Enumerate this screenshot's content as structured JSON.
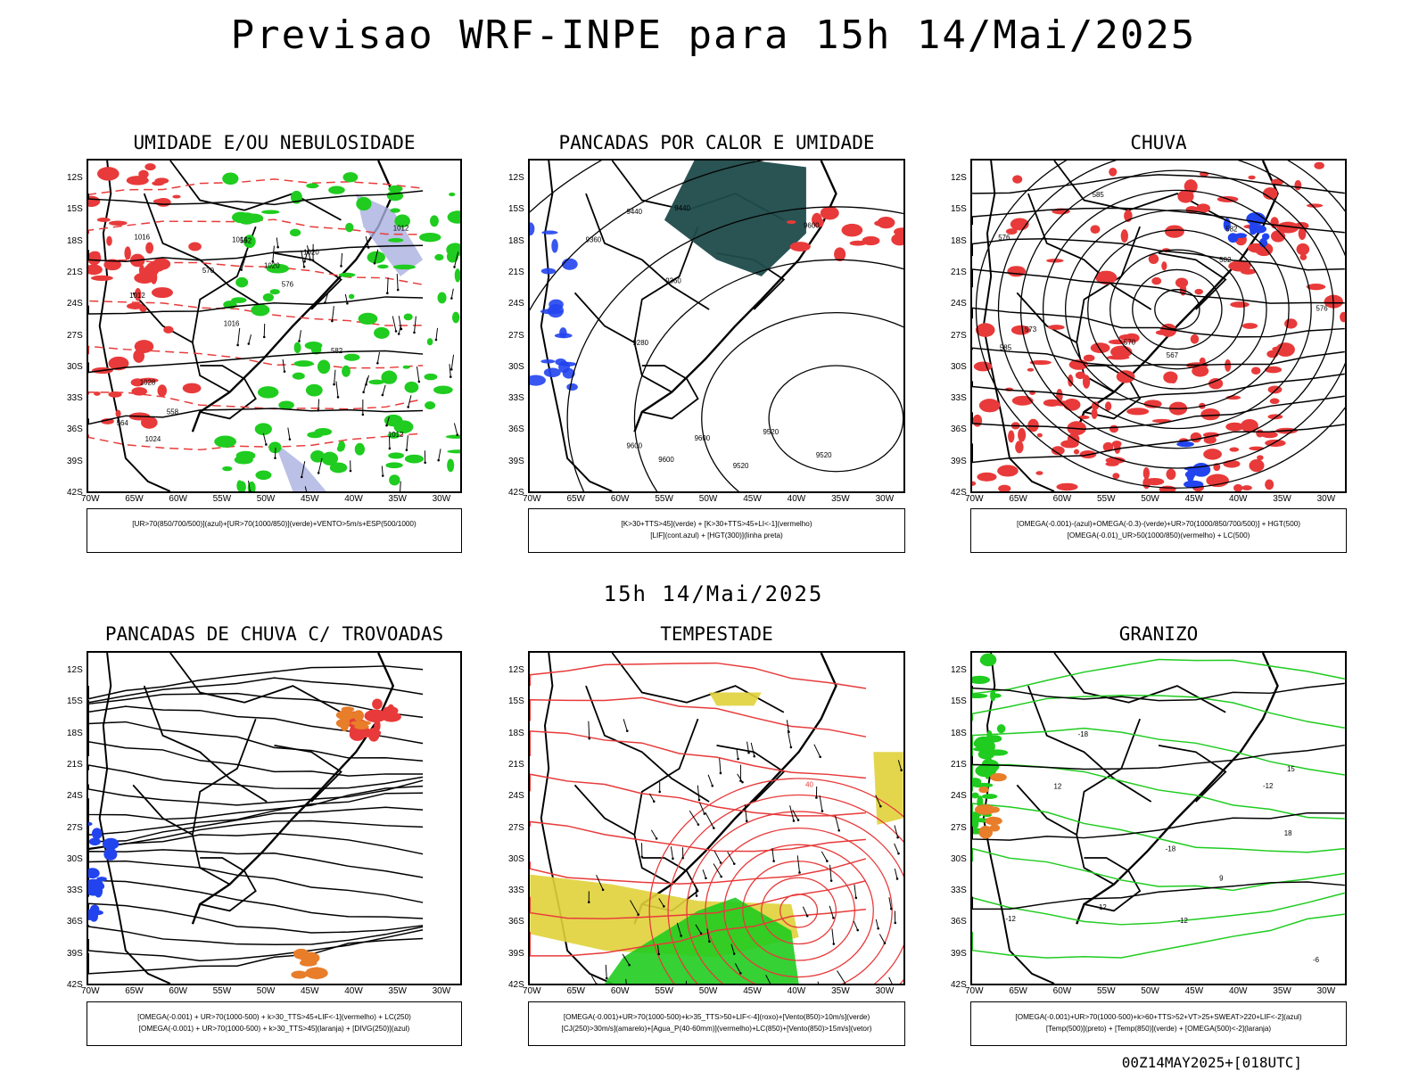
{
  "title": "Previsao WRF-INPE  para 15h 14/Mai/2025",
  "mid_title": "15h 14/Mai/2025",
  "footer": "00Z14MAY2025+[018UTC]",
  "axes": {
    "y_labels": [
      "12S",
      "15S",
      "18S",
      "21S",
      "24S",
      "27S",
      "30S",
      "33S",
      "36S",
      "39S",
      "42S"
    ],
    "x_labels": [
      "70W",
      "65W",
      "60W",
      "55W",
      "50W",
      "45W",
      "40W",
      "35W",
      "30W"
    ]
  },
  "panels": [
    {
      "title": "UMIDADE E/OU NEBULOSIDADE",
      "legend": [
        "[UR>70(850/700/500)](azul)+[UR>70(1000/850)](verde)+VENTO>5m/s+ESP(500/1000)"
      ],
      "contour_labels": [
        "1012",
        "1012",
        "1012",
        "1016",
        "1020",
        "1024",
        "1016",
        "1020",
        "1028",
        "570",
        "564",
        "558",
        "552",
        "576",
        "582",
        "1016"
      ]
    },
    {
      "title": "PANCADAS POR CALOR E UMIDADE",
      "legend": [
        "[K>30+TTS>45](verde) + [K>30+TTS>45+LI<-1](vermelho)",
        "[LIF](cont.azul) + [HGT(300)](linha preta)"
      ],
      "contour_labels": [
        "9600",
        "9520",
        "9600",
        "9520",
        "9440",
        "9360",
        "9280",
        "9520",
        "9440",
        "9360",
        "9600",
        "9600"
      ]
    },
    {
      "title": "CHUVA",
      "legend": [
        "[OMEGA(-0.001)-(azul)+OMEGA(-0.3)-(verde)+UR>70(1000/850/700/500)] + HGT(500)",
        "[OMEGA(-0.01)_UR>50(1000/850)(vermelho) + LC(500)"
      ],
      "contour_labels": [
        "585",
        "582",
        "576",
        "570",
        "567",
        "573",
        "576",
        "582",
        "585"
      ]
    },
    {
      "title": "PANCADAS DE CHUVA C/ TROVOADAS",
      "legend": [
        "[OMEGA(-0.001) + UR>70(1000-500) + k>30_TTS>45+LIF<-1](vermelho) + LC(250)",
        "[OMEGA(-0.001) + UR>70(1000-500) + k>30_TTS>45](laranja) + [DIVG(250)](azul)"
      ],
      "contour_labels": []
    },
    {
      "title": "TEMPESTADE",
      "legend": [
        "[OMEGA(-0.001)+UR>70(1000-500)+k>35_TTS>50+LIF<-4](roxo)+[Vento(850)>10m/s](verde)",
        "[CJ(250)>30m/s](amarelo)+[Agua_P(40-60mm)](vermelho)+LC(850)+[Vento(850)>15m/s](vetor)"
      ],
      "contour_labels": [
        "40"
      ]
    },
    {
      "title": "GRANIZO",
      "legend": [
        "[OMEGA(-0.001)+UR>70(1000-500)+k>60+TTS>52+VT>25+SWEAT>220+LIF<-2](azul)",
        "[Temp(500)](preto) + [Temp(850)](verde) + [OMEGA(500)<-2](laranja)"
      ],
      "contour_labels": [
        "-12",
        "-18",
        "-6",
        "-12",
        "-18",
        "-12",
        "12",
        "15",
        "18",
        "12",
        "9"
      ]
    }
  ],
  "colors": {
    "red": "#e83a3a",
    "green": "#1fcc1f",
    "blue": "#2244ee",
    "lavender": "#aab0e0",
    "teal": "#1f4a4a",
    "yellow": "#e0d23a",
    "orange": "#e87d2a",
    "black": "#000000"
  }
}
